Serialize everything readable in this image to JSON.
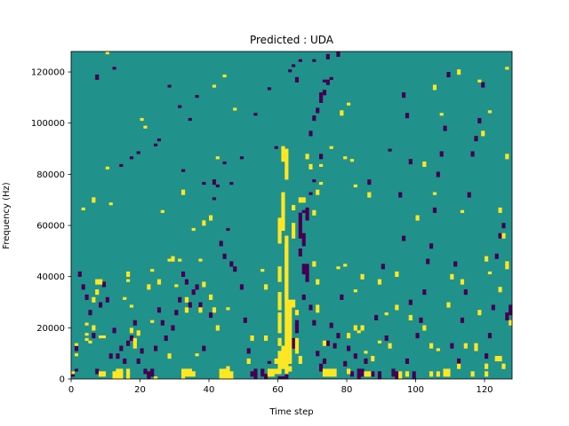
{
  "chart_data": {
    "type": "heatmap",
    "title": "Predicted : UDA",
    "xlabel": "Time step",
    "ylabel": "Frequency (Hz)",
    "xlim": [
      0,
      128
    ],
    "ylim": [
      0,
      128000
    ],
    "xticks": [
      0,
      20,
      40,
      60,
      80,
      100,
      120
    ],
    "yticks": [
      0,
      20000,
      40000,
      60000,
      80000,
      100000,
      120000
    ],
    "x_tick_labels": [
      "0",
      "20",
      "40",
      "60",
      "80",
      "100",
      "120"
    ],
    "y_tick_labels": [
      "0",
      "20000",
      "40000",
      "60000",
      "80000",
      "100000",
      "120000"
    ],
    "n_time_steps": 128,
    "n_freq_bins": 128,
    "freq_bin_hz": 1000,
    "colormap": "viridis",
    "levels": {
      "low": -1,
      "mid": 0,
      "high": 1
    },
    "level_colors": {
      "low": "#440154",
      "mid": "#21918c",
      "high": "#fde725"
    },
    "grid": false,
    "cells_high": [
      [
        0,
        2,
        2
      ],
      [
        1,
        9,
        9
      ],
      [
        1,
        13,
        13
      ],
      [
        5,
        14,
        14
      ],
      [
        8,
        16,
        16
      ],
      [
        9,
        16,
        16
      ],
      [
        4,
        15,
        15
      ],
      [
        4,
        17,
        17
      ],
      [
        4,
        21,
        21
      ],
      [
        6,
        69,
        70
      ],
      [
        3,
        66,
        66
      ],
      [
        6,
        19,
        20
      ],
      [
        7,
        33,
        34
      ],
      [
        7,
        37,
        38
      ],
      [
        8,
        37,
        38
      ],
      [
        6,
        30,
        31
      ],
      [
        11,
        68,
        68
      ],
      [
        10,
        82,
        82
      ],
      [
        10,
        127,
        127
      ],
      [
        8,
        1,
        2
      ],
      [
        9,
        1,
        2
      ],
      [
        13,
        0,
        3
      ],
      [
        14,
        0,
        3
      ],
      [
        15,
        31,
        31
      ],
      [
        16,
        38,
        38
      ],
      [
        14,
        0,
        2
      ],
      [
        12,
        0,
        2
      ],
      [
        17,
        28,
        28
      ],
      [
        17,
        18,
        19
      ],
      [
        16,
        40,
        41
      ],
      [
        18,
        12,
        13
      ],
      [
        18,
        14,
        15
      ],
      [
        19,
        17,
        18
      ],
      [
        16,
        0,
        3
      ],
      [
        20,
        101,
        101
      ],
      [
        22,
        35,
        36
      ],
      [
        23,
        22,
        22
      ],
      [
        23,
        42,
        42
      ],
      [
        25,
        37,
        38
      ],
      [
        26,
        65,
        65
      ],
      [
        24,
        0,
        0
      ],
      [
        21,
        98,
        98
      ],
      [
        28,
        46,
        46
      ],
      [
        30,
        36,
        36
      ],
      [
        31,
        46,
        46
      ],
      [
        32,
        72,
        73
      ],
      [
        32,
        0,
        3
      ],
      [
        33,
        1,
        3
      ],
      [
        34,
        1,
        3
      ],
      [
        35,
        1,
        2
      ],
      [
        33,
        26,
        27
      ],
      [
        34,
        2,
        3
      ],
      [
        33,
        30,
        31
      ],
      [
        35,
        58,
        58
      ],
      [
        37,
        46,
        46
      ],
      [
        38,
        60,
        61
      ],
      [
        40,
        62,
        63
      ],
      [
        41,
        114,
        114
      ],
      [
        42,
        86,
        86
      ],
      [
        43,
        0,
        3
      ],
      [
        44,
        0,
        3
      ],
      [
        45,
        0,
        3
      ],
      [
        46,
        0,
        2
      ],
      [
        41,
        26,
        27
      ],
      [
        45,
        27,
        27
      ],
      [
        47,
        105,
        105
      ],
      [
        44,
        118,
        118
      ],
      [
        51,
        6,
        7
      ],
      [
        52,
        15,
        16
      ],
      [
        55,
        42,
        42
      ],
      [
        56,
        15,
        16
      ],
      [
        56,
        35,
        36
      ],
      [
        57,
        1,
        3
      ],
      [
        58,
        1,
        3
      ],
      [
        59,
        2,
        3
      ],
      [
        60,
        2,
        10
      ],
      [
        60,
        13,
        15
      ],
      [
        60,
        18,
        25
      ],
      [
        60,
        27,
        33
      ],
      [
        60,
        38,
        43
      ],
      [
        60,
        53,
        55
      ],
      [
        60,
        56,
        62
      ],
      [
        61,
        58,
        72
      ],
      [
        61,
        85,
        90
      ],
      [
        61,
        4,
        12
      ],
      [
        62,
        6,
        55
      ],
      [
        62,
        78,
        89
      ],
      [
        62,
        30,
        52
      ],
      [
        63,
        3,
        4
      ],
      [
        62,
        2,
        5
      ],
      [
        63,
        6,
        30
      ],
      [
        64,
        28,
        30
      ],
      [
        64,
        55,
        57
      ],
      [
        64,
        58,
        60
      ],
      [
        65,
        10,
        15
      ],
      [
        66,
        6,
        8
      ],
      [
        68,
        86,
        87
      ],
      [
        71,
        26,
        28
      ],
      [
        73,
        1,
        3
      ],
      [
        73,
        13,
        14
      ],
      [
        74,
        1,
        3
      ],
      [
        75,
        1,
        3
      ],
      [
        76,
        1,
        3
      ],
      [
        72,
        76,
        76
      ],
      [
        72,
        83,
        83
      ],
      [
        71,
        37,
        38
      ],
      [
        70,
        44,
        45
      ],
      [
        77,
        43,
        43
      ],
      [
        80,
        2,
        3
      ],
      [
        80,
        16,
        17
      ],
      [
        79,
        86,
        86
      ],
      [
        81,
        85,
        85
      ],
      [
        82,
        34,
        34
      ],
      [
        79,
        44,
        44
      ],
      [
        82,
        19,
        20
      ],
      [
        83,
        18,
        18
      ],
      [
        84,
        19,
        20
      ],
      [
        85,
        10,
        10
      ],
      [
        85,
        1,
        2
      ],
      [
        86,
        1,
        2
      ],
      [
        87,
        7,
        8
      ],
      [
        89,
        37,
        38
      ],
      [
        92,
        12,
        13
      ],
      [
        94,
        40,
        41
      ],
      [
        95,
        0,
        2
      ],
      [
        97,
        1,
        2
      ],
      [
        98,
        23,
        24
      ],
      [
        102,
        19,
        20
      ],
      [
        104,
        1,
        2
      ],
      [
        106,
        1,
        2
      ],
      [
        106,
        11,
        11
      ],
      [
        108,
        1,
        3
      ],
      [
        109,
        1,
        3
      ],
      [
        112,
        4,
        5
      ],
      [
        116,
        1,
        2
      ],
      [
        120,
        1,
        2
      ],
      [
        121,
        41,
        41
      ],
      [
        120,
        4,
        5
      ],
      [
        123,
        7,
        8
      ],
      [
        124,
        7,
        8
      ],
      [
        125,
        4,
        5
      ],
      [
        127,
        21,
        22
      ],
      [
        126,
        43,
        45
      ],
      [
        117,
        11,
        13
      ],
      [
        118,
        25,
        26
      ],
      [
        124,
        34,
        35
      ],
      [
        126,
        86,
        87
      ],
      [
        126,
        121,
        121
      ],
      [
        120,
        46,
        47
      ],
      [
        114,
        12,
        13
      ],
      [
        113,
        65,
        65
      ],
      [
        112,
        119,
        120
      ],
      [
        118,
        116,
        116
      ],
      [
        121,
        104,
        104
      ],
      [
        125,
        55,
        56
      ],
      [
        124,
        65,
        66
      ],
      [
        119,
        95,
        96
      ],
      [
        105,
        113,
        114
      ],
      [
        107,
        103,
        103
      ],
      [
        109,
        28,
        29
      ],
      [
        113,
        37,
        38
      ],
      [
        110,
        39,
        40
      ],
      [
        105,
        72,
        72
      ],
      [
        104,
        12,
        13
      ],
      [
        102,
        83,
        84
      ],
      [
        100,
        62,
        63
      ],
      [
        94,
        27,
        28
      ],
      [
        91,
        25,
        25
      ],
      [
        89,
        14,
        14
      ],
      [
        86,
        71,
        72
      ],
      [
        84,
        39,
        40
      ],
      [
        82,
        75,
        75
      ],
      [
        80,
        107,
        107
      ],
      [
        78,
        103,
        104
      ],
      [
        75,
        90,
        90
      ],
      [
        69,
        82,
        83
      ],
      [
        70,
        64,
        65
      ],
      [
        71,
        72,
        73
      ],
      [
        67,
        69,
        70
      ],
      [
        66,
        69,
        70
      ],
      [
        64,
        66,
        67
      ],
      [
        59,
        6,
        7
      ],
      [
        65,
        25,
        26
      ],
      [
        45,
        3,
        4
      ],
      [
        42,
        19,
        20
      ],
      [
        40,
        31,
        32
      ],
      [
        38,
        36,
        37
      ],
      [
        37,
        26,
        27
      ],
      [
        36,
        9,
        9
      ],
      [
        28,
        8,
        9
      ],
      [
        29,
        46,
        47
      ]
    ],
    "cells_low": [
      [
        1,
        3,
        3
      ],
      [
        7,
        117,
        118
      ],
      [
        12,
        121,
        121
      ],
      [
        14,
        83,
        83
      ],
      [
        17,
        86,
        86
      ],
      [
        19,
        88,
        88
      ],
      [
        24,
        91,
        91
      ],
      [
        25,
        93,
        93
      ],
      [
        28,
        114,
        114
      ],
      [
        31,
        106,
        106
      ],
      [
        32,
        81,
        81
      ],
      [
        34,
        101,
        101
      ],
      [
        36,
        110,
        110
      ],
      [
        38,
        76,
        76
      ],
      [
        41,
        70,
        70
      ],
      [
        42,
        75,
        75
      ],
      [
        44,
        84,
        84
      ],
      [
        46,
        76,
        76
      ],
      [
        49,
        86,
        86
      ],
      [
        53,
        103,
        103
      ],
      [
        57,
        113,
        113
      ],
      [
        59,
        90,
        90
      ],
      [
        63,
        120,
        120
      ],
      [
        64,
        122,
        122
      ],
      [
        65,
        116,
        117
      ],
      [
        66,
        124,
        124
      ],
      [
        70,
        124,
        124
      ],
      [
        72,
        110,
        111
      ],
      [
        73,
        116,
        116
      ],
      [
        75,
        117,
        117
      ],
      [
        77,
        126,
        127
      ],
      [
        74,
        125,
        126
      ],
      [
        72,
        86,
        87
      ],
      [
        70,
        77,
        77
      ],
      [
        69,
        72,
        72
      ],
      [
        67,
        65,
        65
      ],
      [
        66,
        55,
        57
      ],
      [
        66,
        48,
        50
      ],
      [
        66,
        58,
        64
      ],
      [
        67,
        41,
        44
      ],
      [
        68,
        40,
        44
      ],
      [
        67,
        31,
        32
      ],
      [
        65,
        18,
        22
      ],
      [
        64,
        12,
        15
      ],
      [
        63,
        11,
        12
      ],
      [
        62,
        0,
        1
      ],
      [
        61,
        0,
        0
      ],
      [
        60,
        0,
        0
      ],
      [
        58,
        1,
        3
      ],
      [
        57,
        6,
        6
      ],
      [
        56,
        0,
        1
      ],
      [
        55,
        1,
        3
      ],
      [
        53,
        0,
        3
      ],
      [
        52,
        1,
        2
      ],
      [
        51,
        10,
        11
      ],
      [
        50,
        22,
        23
      ],
      [
        49,
        35,
        36
      ],
      [
        47,
        42,
        43
      ],
      [
        46,
        44,
        45
      ],
      [
        45,
        58,
        58
      ],
      [
        44,
        47,
        48
      ],
      [
        43,
        52,
        53
      ],
      [
        41,
        76,
        77
      ],
      [
        40,
        24,
        25
      ],
      [
        38,
        11,
        12
      ],
      [
        37,
        28,
        29
      ],
      [
        36,
        35,
        36
      ],
      [
        35,
        33,
        34
      ],
      [
        34,
        28,
        29
      ],
      [
        33,
        37,
        38
      ],
      [
        32,
        40,
        41
      ],
      [
        31,
        30,
        31
      ],
      [
        30,
        25,
        26
      ],
      [
        29,
        19,
        20
      ],
      [
        27,
        15,
        16
      ],
      [
        26,
        21,
        22
      ],
      [
        25,
        26,
        27
      ],
      [
        24,
        11,
        12
      ],
      [
        23,
        1,
        3
      ],
      [
        22,
        0,
        2
      ],
      [
        21,
        2,
        3
      ],
      [
        20,
        10,
        11
      ],
      [
        19,
        6,
        7
      ],
      [
        18,
        21,
        22
      ],
      [
        17,
        15,
        16
      ],
      [
        16,
        13,
        14
      ],
      [
        15,
        6,
        7
      ],
      [
        14,
        11,
        12
      ],
      [
        13,
        8,
        9
      ],
      [
        12,
        18,
        19
      ],
      [
        11,
        8,
        9
      ],
      [
        10,
        30,
        31
      ],
      [
        9,
        36,
        37
      ],
      [
        8,
        28,
        29
      ],
      [
        7,
        2,
        3
      ],
      [
        6,
        16,
        17
      ],
      [
        5,
        25,
        26
      ],
      [
        4,
        31,
        32
      ],
      [
        3,
        35,
        36
      ],
      [
        2,
        40,
        41
      ],
      [
        1,
        11,
        12
      ],
      [
        0,
        1,
        2
      ],
      [
        69,
        27,
        28
      ],
      [
        70,
        21,
        22
      ],
      [
        71,
        9,
        10
      ],
      [
        72,
        3,
        5
      ],
      [
        73,
        6,
        7
      ],
      [
        74,
        13,
        14
      ],
      [
        75,
        20,
        21
      ],
      [
        76,
        12,
        13
      ],
      [
        77,
        16,
        17
      ],
      [
        78,
        31,
        32
      ],
      [
        79,
        5,
        6
      ],
      [
        80,
        11,
        12
      ],
      [
        81,
        1,
        2
      ],
      [
        82,
        8,
        9
      ],
      [
        83,
        0,
        3
      ],
      [
        84,
        1,
        3
      ],
      [
        85,
        6,
        7
      ],
      [
        86,
        76,
        77
      ],
      [
        87,
        1,
        2
      ],
      [
        88,
        23,
        24
      ],
      [
        89,
        0,
        2
      ],
      [
        90,
        43,
        44
      ],
      [
        91,
        15,
        16
      ],
      [
        92,
        89,
        89
      ],
      [
        93,
        1,
        3
      ],
      [
        94,
        0,
        2
      ],
      [
        95,
        71,
        72
      ],
      [
        96,
        54,
        55
      ],
      [
        97,
        6,
        7
      ],
      [
        98,
        29,
        30
      ],
      [
        99,
        0,
        2
      ],
      [
        100,
        16,
        17
      ],
      [
        101,
        22,
        23
      ],
      [
        102,
        33,
        34
      ],
      [
        103,
        45,
        46
      ],
      [
        104,
        51,
        52
      ],
      [
        105,
        65,
        66
      ],
      [
        106,
        79,
        80
      ],
      [
        107,
        87,
        88
      ],
      [
        108,
        97,
        98
      ],
      [
        109,
        118,
        119
      ],
      [
        110,
        12,
        13
      ],
      [
        111,
        44,
        45
      ],
      [
        112,
        6,
        7
      ],
      [
        113,
        22,
        23
      ],
      [
        114,
        33,
        34
      ],
      [
        115,
        71,
        72
      ],
      [
        116,
        87,
        88
      ],
      [
        117,
        93,
        94
      ],
      [
        118,
        100,
        101
      ],
      [
        119,
        114,
        115
      ],
      [
        120,
        8,
        9
      ],
      [
        121,
        16,
        17
      ],
      [
        122,
        27,
        28
      ],
      [
        123,
        47,
        48
      ],
      [
        124,
        55,
        56
      ],
      [
        125,
        59,
        60
      ],
      [
        126,
        23,
        25
      ],
      [
        127,
        25,
        28
      ],
      [
        67,
        52,
        56
      ],
      [
        68,
        62,
        66
      ],
      [
        68,
        38,
        40
      ],
      [
        69,
        95,
        96
      ],
      [
        70,
        101,
        102
      ],
      [
        71,
        104,
        105
      ],
      [
        72,
        108,
        109
      ],
      [
        73,
        111,
        112
      ],
      [
        74,
        115,
        116
      ],
      [
        96,
        110,
        111
      ],
      [
        97,
        102,
        103
      ],
      [
        98,
        84,
        85
      ]
    ]
  }
}
